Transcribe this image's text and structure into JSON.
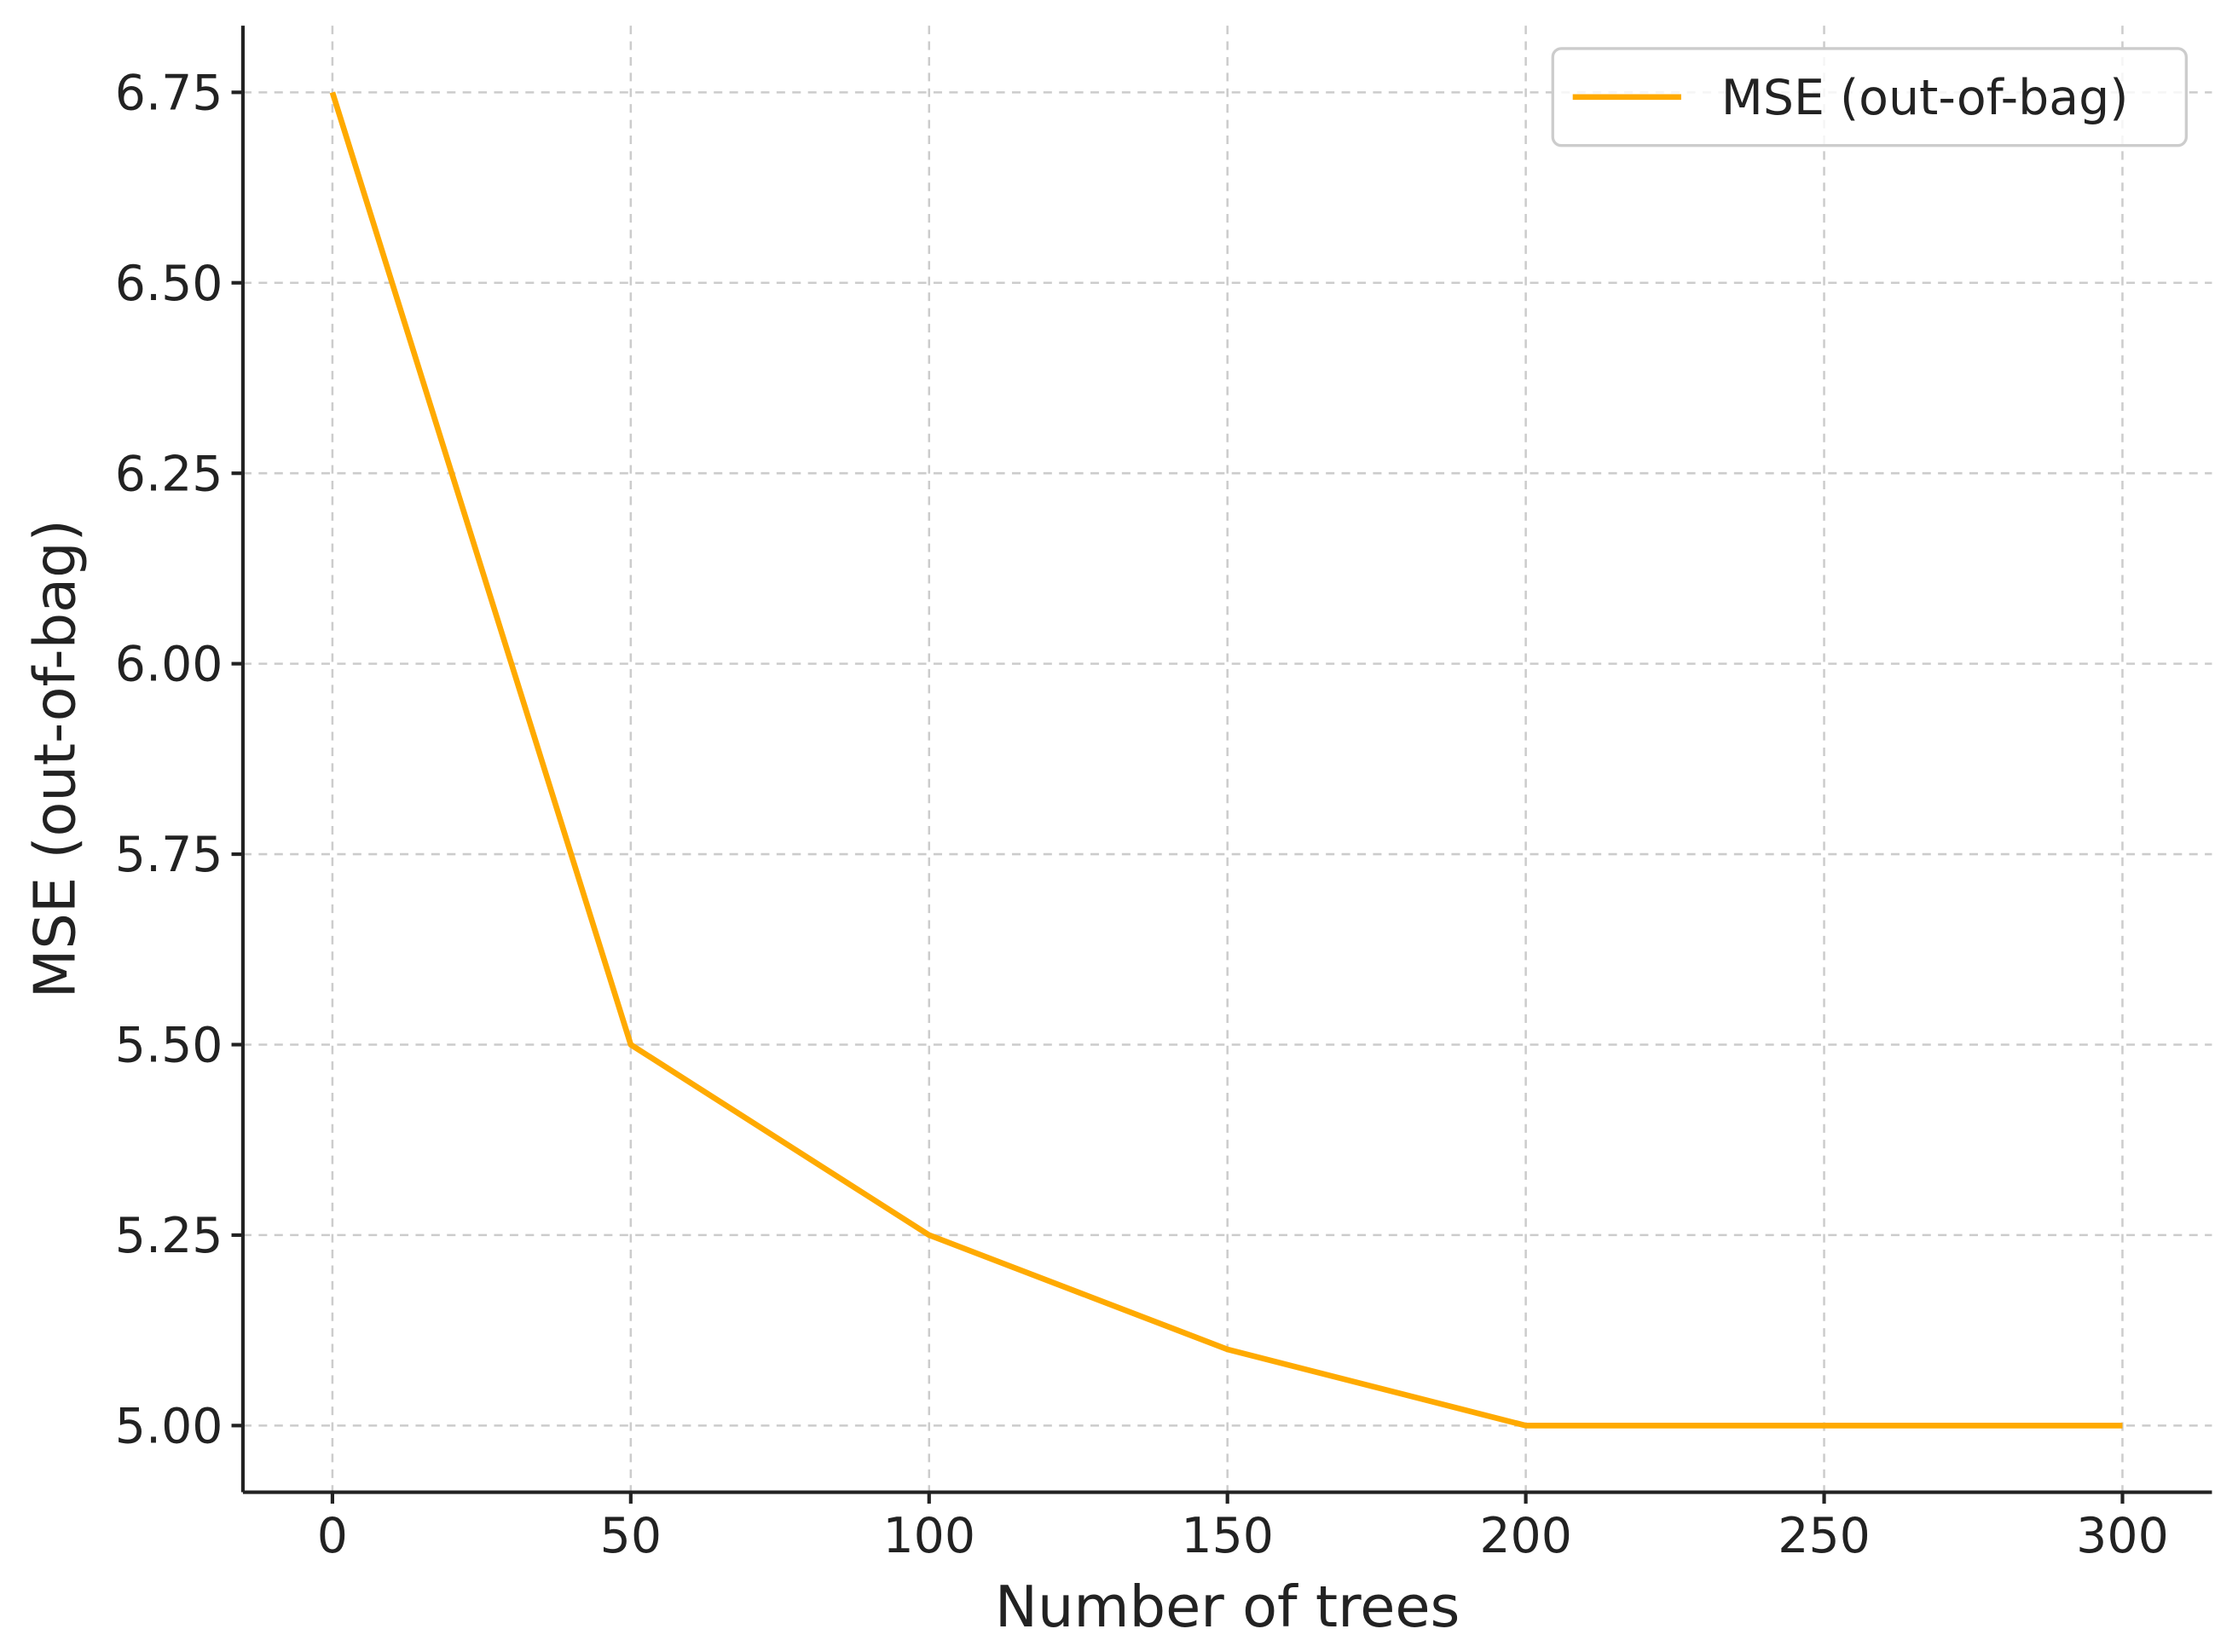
{
  "chart_data": {
    "type": "line",
    "x_label": "Number of trees",
    "y_label": "MSE (out-of-bag)",
    "x": [
      0,
      50,
      100,
      150,
      200,
      250,
      300
    ],
    "series": [
      {
        "name": "MSE (out-of-bag)",
        "color": "#ffaa00",
        "values": [
          6.75,
          5.5,
          5.25,
          5.1,
          5.0,
          5.0,
          5.0
        ]
      }
    ],
    "xlim": [
      -15,
      315
    ],
    "xticks": [
      0,
      50,
      100,
      150,
      200,
      250,
      300
    ],
    "ylim": [
      4.9125,
      6.8375
    ],
    "yticks": [
      {
        "value": 5.0,
        "label": "5.00"
      },
      5.25,
      {
        "value": 5.5,
        "label": "5.50"
      },
      5.75,
      {
        "value": 6.0,
        "label": "6.00"
      },
      6.25,
      {
        "value": 6.5,
        "label": "6.50"
      },
      6.75
    ],
    "grid": true,
    "legend": "upper right"
  }
}
